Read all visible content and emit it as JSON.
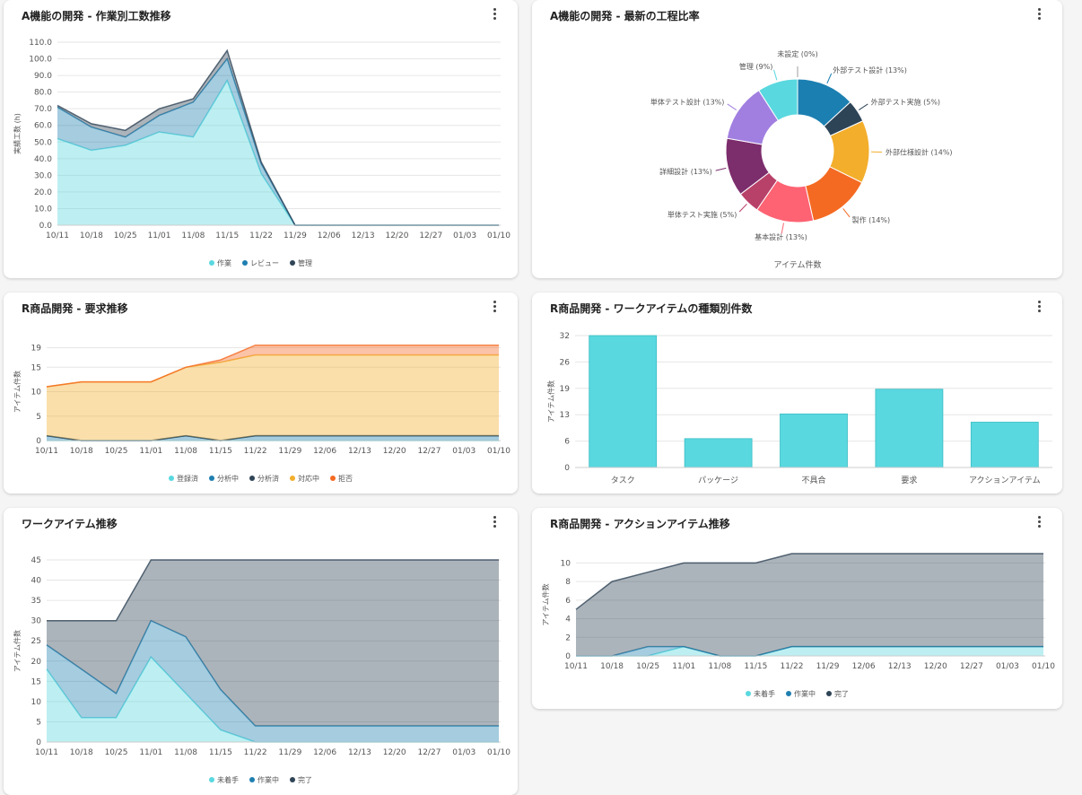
{
  "cards": [
    {
      "title": "A機能の開発 - 作業別工数推移",
      "legend": [
        {
          "name": "作業",
          "color": "#59d8df"
        },
        {
          "name": "レビュー",
          "color": "#1e7fb0"
        },
        {
          "name": "管理",
          "color": "#2f4456"
        }
      ],
      "chart_data": {
        "type": "area",
        "stacked": true,
        "ylabel": "実績工数 (h)",
        "ylim": [
          0,
          110
        ],
        "yticks": [
          "0.0",
          "10.0",
          "20.0",
          "30.0",
          "40.0",
          "50.0",
          "60.0",
          "70.0",
          "80.0",
          "90.0",
          "100.0",
          "110.0"
        ],
        "categories": [
          "10/11",
          "10/18",
          "10/25",
          "11/01",
          "11/08",
          "11/15",
          "11/22",
          "11/29",
          "12/06",
          "12/13",
          "12/20",
          "12/27",
          "01/03",
          "01/10"
        ],
        "series": [
          {
            "name": "作業",
            "color": "#59d8df",
            "values": [
              52,
              45,
              48,
              56,
              53,
              87,
              31,
              0,
              0,
              0,
              0,
              0,
              0,
              0
            ]
          },
          {
            "name": "レビュー",
            "color": "#1e7fb0",
            "values": [
              19,
              14,
              5,
              10,
              21,
              13,
              6,
              0,
              0,
              0,
              0,
              0,
              0,
              0
            ]
          },
          {
            "name": "管理",
            "color": "#2f4456",
            "values": [
              1,
              2,
              4,
              4,
              2,
              5,
              1,
              0,
              0,
              0,
              0,
              0,
              0,
              0
            ]
          }
        ]
      }
    },
    {
      "title": "A機能の開発 - 最新の工程比率",
      "chart_data": {
        "type": "pie",
        "donut": true,
        "xlabel": "アイテム件数",
        "slices": [
          {
            "name": "未設定",
            "percent": 0,
            "label": "未設定 (0%)",
            "color": "#9e9e9e"
          },
          {
            "name": "外部テスト設計",
            "percent": 13,
            "label": "外部テスト設計 (13%)",
            "color": "#1b7fb1"
          },
          {
            "name": "外部テスト実施",
            "percent": 5,
            "label": "外部テスト実施 (5%)",
            "color": "#2d4457"
          },
          {
            "name": "外部仕様設計",
            "percent": 14,
            "label": "外部仕様設計 (14%)",
            "color": "#f3ae2c"
          },
          {
            "name": "製作",
            "percent": 14,
            "label": "製作 (14%)",
            "color": "#f46a22"
          },
          {
            "name": "基本設計",
            "percent": 13,
            "label": "基本設計 (13%)",
            "color": "#fe6373"
          },
          {
            "name": "単体テスト実施",
            "percent": 5,
            "label": "単体テスト実施 (5%)",
            "color": "#b8416a"
          },
          {
            "name": "詳細設計",
            "percent": 13,
            "label": "詳細設計 (13%)",
            "color": "#7c2d6c"
          },
          {
            "name": "単体テスト設計",
            "percent": 13,
            "label": "単体テスト設計 (13%)",
            "color": "#a17fe0"
          },
          {
            "name": "管理",
            "percent": 9,
            "label": "管理 (9%)",
            "color": "#59d8df"
          }
        ]
      }
    },
    {
      "title": "R商品開発 - 要求推移",
      "legend": [
        {
          "name": "登録済",
          "color": "#59d8df"
        },
        {
          "name": "分析中",
          "color": "#1e7fb0"
        },
        {
          "name": "分析済",
          "color": "#2f4456"
        },
        {
          "name": "対応中",
          "color": "#f3ae2c"
        },
        {
          "name": "拒否",
          "color": "#f46a22"
        }
      ],
      "chart_data": {
        "type": "area",
        "stacked": true,
        "ylabel": "アイテム件数",
        "ylim": [
          0,
          20
        ],
        "yticks": [
          "0",
          "5",
          "10",
          "15",
          "19"
        ],
        "ytick_values": [
          0,
          5,
          10,
          15,
          19
        ],
        "categories": [
          "10/11",
          "10/18",
          "10/25",
          "11/01",
          "11/08",
          "11/15",
          "11/22",
          "11/29",
          "12/06",
          "12/13",
          "12/20",
          "12/27",
          "01/03",
          "01/10"
        ],
        "series": [
          {
            "name": "登録済",
            "color": "#59d8df",
            "values": [
              0,
              0,
              0,
              0,
              0,
              0,
              0,
              0,
              0,
              0,
              0,
              0,
              0,
              0
            ]
          },
          {
            "name": "分析中",
            "color": "#1e7fb0",
            "values": [
              1,
              0,
              0,
              0,
              1,
              0,
              1,
              1,
              1,
              1,
              1,
              1,
              1,
              1
            ]
          },
          {
            "name": "分析済",
            "color": "#2f4456",
            "values": [
              0,
              0,
              0,
              0,
              0,
              0,
              0,
              0,
              0,
              0,
              0,
              0,
              0,
              0
            ]
          },
          {
            "name": "対応中",
            "color": "#f3ae2c",
            "values": [
              10,
              12,
              12,
              12,
              14,
              16,
              16.5,
              16.5,
              16.5,
              16.5,
              16.5,
              16.5,
              16.5,
              16.5
            ]
          },
          {
            "name": "拒否",
            "color": "#f46a22",
            "values": [
              0,
              0,
              0,
              0,
              0,
              0.5,
              2,
              2,
              2,
              2,
              2,
              2,
              2,
              2
            ]
          }
        ]
      }
    },
    {
      "title": "R商品開発 - ワークアイテムの種類別件数",
      "chart_data": {
        "type": "bar",
        "ylabel": "アイテム件数",
        "ylim": [
          0,
          32
        ],
        "yticks": [
          "0",
          "6",
          "13",
          "19",
          "26",
          "32"
        ],
        "ytick_values": [
          0,
          6.4,
          12.8,
          19.2,
          25.6,
          32
        ],
        "categories": [
          "タスク",
          "パッケージ",
          "不具合",
          "要求",
          "アクションアイテム"
        ],
        "values": [
          32,
          7,
          13,
          19,
          11
        ],
        "color": "#59d8df"
      }
    },
    {
      "title": "ワークアイテム推移",
      "legend": [
        {
          "name": "未着手",
          "color": "#59d8df"
        },
        {
          "name": "作業中",
          "color": "#1e7fb0"
        },
        {
          "name": "完了",
          "color": "#2f4456"
        }
      ],
      "chart_data": {
        "type": "area",
        "stacked": true,
        "ylabel": "アイテム件数",
        "ylim": [
          0,
          45
        ],
        "yticks": [
          "0",
          "5",
          "10",
          "15",
          "20",
          "25",
          "30",
          "35",
          "40",
          "45"
        ],
        "categories": [
          "10/11",
          "10/18",
          "10/25",
          "11/01",
          "11/08",
          "11/15",
          "11/22",
          "11/29",
          "12/06",
          "12/13",
          "12/20",
          "12/27",
          "01/03",
          "01/10"
        ],
        "series": [
          {
            "name": "未着手",
            "color": "#59d8df",
            "values": [
              18,
              6,
              6,
              21,
              12,
              3,
              0,
              0,
              0,
              0,
              0,
              0,
              0,
              0
            ]
          },
          {
            "name": "作業中",
            "color": "#1e7fb0",
            "values": [
              6,
              12,
              6,
              9,
              14,
              10,
              4,
              4,
              4,
              4,
              4,
              4,
              4,
              4
            ]
          },
          {
            "name": "完了",
            "color": "#2f4456",
            "values": [
              6,
              12,
              18,
              15,
              19,
              32,
              41,
              41,
              41,
              41,
              41,
              41,
              41,
              41
            ]
          }
        ]
      }
    },
    {
      "title": "R商品開発 - アクションアイテム推移",
      "legend": [
        {
          "name": "未着手",
          "color": "#59d8df"
        },
        {
          "name": "作業中",
          "color": "#1e7fb0"
        },
        {
          "name": "完了",
          "color": "#2f4456"
        }
      ],
      "chart_data": {
        "type": "area",
        "stacked": true,
        "ylabel": "アイテム件数",
        "ylim": [
          0,
          11
        ],
        "yticks": [
          "0",
          "2",
          "4",
          "6",
          "8",
          "10"
        ],
        "categories": [
          "10/11",
          "10/18",
          "10/25",
          "11/01",
          "11/08",
          "11/15",
          "11/22",
          "11/29",
          "12/06",
          "12/13",
          "12/20",
          "12/27",
          "01/03",
          "01/10"
        ],
        "series": [
          {
            "name": "未着手",
            "color": "#59d8df",
            "values": [
              0,
              0,
              0,
              1,
              0,
              0,
              1,
              1,
              1,
              1,
              1,
              1,
              1,
              1
            ]
          },
          {
            "name": "作業中",
            "color": "#1e7fb0",
            "values": [
              0,
              0,
              1,
              0,
              0,
              0,
              0,
              0,
              0,
              0,
              0,
              0,
              0,
              0
            ]
          },
          {
            "name": "完了",
            "color": "#2f4456",
            "values": [
              5,
              8,
              8,
              9,
              10,
              10,
              10,
              10,
              10,
              10,
              10,
              10,
              10,
              10
            ]
          }
        ]
      }
    }
  ]
}
